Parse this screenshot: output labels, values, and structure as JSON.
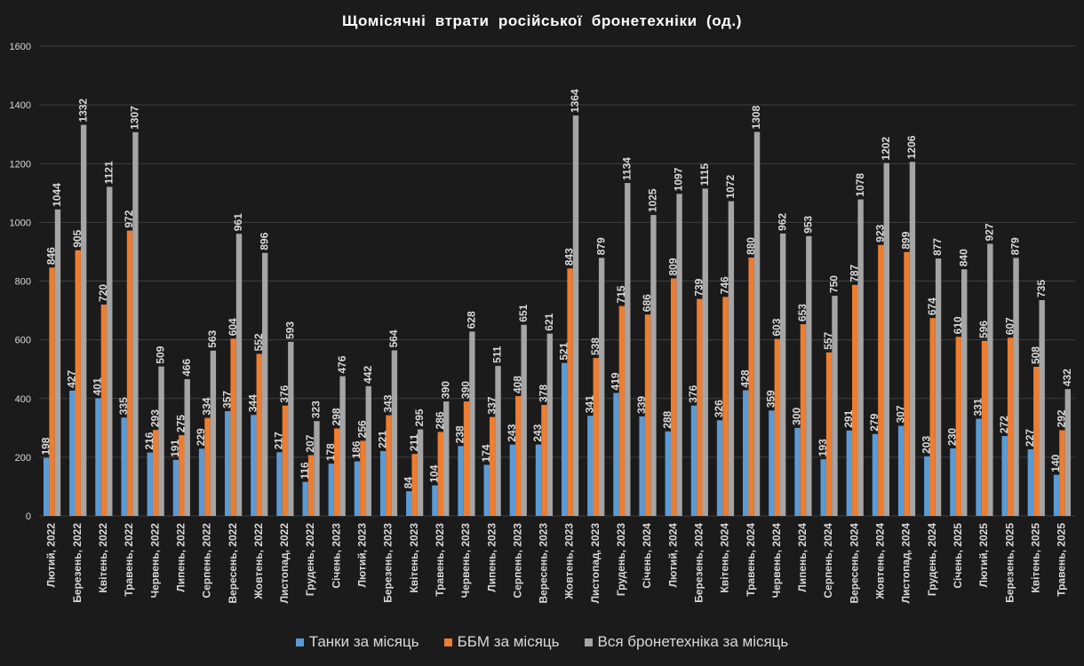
{
  "chart_data": {
    "type": "bar",
    "title": "Щомісячні  втрати  російської  бронетехніки  (од.)",
    "xlabel": "",
    "ylabel": "",
    "ylim": [
      0,
      1600
    ],
    "yticks": [
      0,
      200,
      400,
      600,
      800,
      1000,
      1200,
      1400,
      1600
    ],
    "grid": true,
    "legend_position": "bottom",
    "categories": [
      "Лютий, 2022",
      "Березень, 2022",
      "Квітень, 2022",
      "Травень, 2022",
      "Червень, 2022",
      "Липень, 2022",
      "Серпень, 2022",
      "Вересень, 2022",
      "Жовтень, 2022",
      "Листопад, 2022",
      "Грудень, 2022",
      "Січень, 2023",
      "Лютий, 2023",
      "Березень, 2023",
      "Квітень, 2023",
      "Травень, 2023",
      "Червень, 2023",
      "Липень, 2023",
      "Серпень, 2023",
      "Вересень, 2023",
      "Жовтень, 2023",
      "Листопад, 2023",
      "Грудень, 2023",
      "Січень, 2024",
      "Лютий, 2024",
      "Березень, 2024",
      "Квітень, 2024",
      "Травень, 2024",
      "Червень, 2024",
      "Липень, 2024",
      "Серпень, 2024",
      "Вересень, 2024",
      "Жовтень, 2024",
      "Листопад, 2024",
      "Грудень, 2024",
      "Січень, 2025",
      "Лютий, 2025",
      "Березень, 2025",
      "Квітень, 2025",
      "Травень, 2025"
    ],
    "series": [
      {
        "name": "Танки за місяць",
        "color": "#5b9bd5",
        "values": [
          198,
          427,
          401,
          335,
          216,
          191,
          229,
          357,
          344,
          217,
          116,
          178,
          186,
          221,
          84,
          104,
          238,
          174,
          243,
          243,
          521,
          341,
          419,
          339,
          288,
          376,
          326,
          428,
          359,
          300,
          193,
          291,
          279,
          307,
          203,
          230,
          331,
          272,
          227,
          140
        ]
      },
      {
        "name": "ББМ за місяць",
        "color": "#ed7d31",
        "values": [
          846,
          905,
          720,
          972,
          293,
          275,
          334,
          604,
          552,
          376,
          207,
          298,
          256,
          343,
          211,
          286,
          390,
          337,
          408,
          378,
          843,
          538,
          715,
          686,
          809,
          739,
          746,
          880,
          603,
          653,
          557,
          787,
          923,
          899,
          674,
          610,
          596,
          607,
          508,
          292
        ]
      },
      {
        "name": "Вся бронетехніка за місяць",
        "color": "#a5a5a5",
        "values": [
          1044,
          1332,
          1121,
          1307,
          509,
          466,
          563,
          961,
          896,
          593,
          323,
          476,
          442,
          564,
          295,
          390,
          628,
          511,
          651,
          621,
          1364,
          879,
          1134,
          1025,
          1097,
          1115,
          1072,
          1308,
          962,
          953,
          750,
          1078,
          1202,
          1206,
          877,
          840,
          927,
          879,
          735,
          432
        ]
      }
    ]
  },
  "colors": {
    "background": "#1b1b1b",
    "grid": "#3f3f3f",
    "text": "#d9d9d9",
    "title": "#ffffff"
  }
}
